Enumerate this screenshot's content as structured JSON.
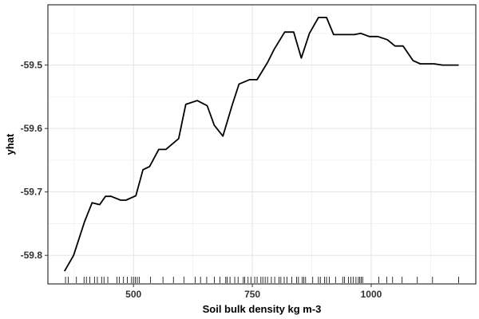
{
  "chart_data": {
    "type": "line",
    "title": "",
    "xlabel": "Soil bulk density kg m-3",
    "ylabel": "yhat",
    "xlim": [
      320,
      1220
    ],
    "ylim": [
      -59.845,
      -59.405
    ],
    "x_ticks": [
      500,
      750,
      1000
    ],
    "x_tick_labels": [
      "500",
      "750",
      "1000"
    ],
    "y_ticks": [
      -59.8,
      -59.7,
      -59.6,
      -59.5
    ],
    "y_tick_labels": [
      "-59.8",
      "-59.7",
      "-59.6",
      "-59.5"
    ],
    "grid": true,
    "series": [
      {
        "name": "yhat",
        "color": "#000000",
        "x": [
          355,
          374,
          397,
          413,
          429,
          441,
          453,
          473,
          484,
          505,
          520,
          534,
          553,
          568,
          595,
          610,
          634,
          655,
          670,
          688,
          708,
          722,
          744,
          760,
          782,
          796,
          818,
          837,
          853,
          870,
          889,
          906,
          921,
          940,
          965,
          978,
          996,
          1014,
          1034,
          1050,
          1067,
          1088,
          1103,
          1117,
          1132,
          1150,
          1162,
          1184
        ],
        "y": [
          -59.825,
          -59.8,
          -59.747,
          -59.717,
          -59.72,
          -59.707,
          -59.707,
          -59.713,
          -59.713,
          -59.706,
          -59.665,
          -59.66,
          -59.633,
          -59.633,
          -59.616,
          -59.562,
          -59.556,
          -59.564,
          -59.595,
          -59.612,
          -59.562,
          -59.53,
          -59.523,
          -59.523,
          -59.496,
          -59.475,
          -59.448,
          -59.448,
          -59.489,
          -59.45,
          -59.425,
          -59.425,
          -59.452,
          -59.452,
          -59.452,
          -59.45,
          -59.455,
          -59.455,
          -59.46,
          -59.47,
          -59.47,
          -59.493,
          -59.498,
          -59.498,
          -59.498,
          -59.5,
          -59.5,
          -59.5
        ]
      }
    ],
    "rug_x": [
      357,
      363,
      380,
      396,
      401,
      408,
      418,
      424,
      433,
      438,
      446,
      465,
      470,
      479,
      487,
      496,
      500,
      504,
      508,
      512,
      536,
      562,
      584,
      606,
      630,
      641,
      654,
      670,
      682,
      694,
      697,
      703,
      713,
      720,
      731,
      734,
      741,
      747,
      755,
      760,
      768,
      772,
      777,
      782,
      790,
      797,
      806,
      810,
      817,
      823,
      833,
      843,
      847,
      855,
      858,
      862,
      877,
      889,
      893,
      902,
      906,
      912,
      925,
      940,
      944,
      952,
      957,
      962,
      968,
      973,
      976,
      979,
      982,
      1016,
      1033,
      1045,
      1065,
      1097,
      1129,
      1184
    ]
  }
}
